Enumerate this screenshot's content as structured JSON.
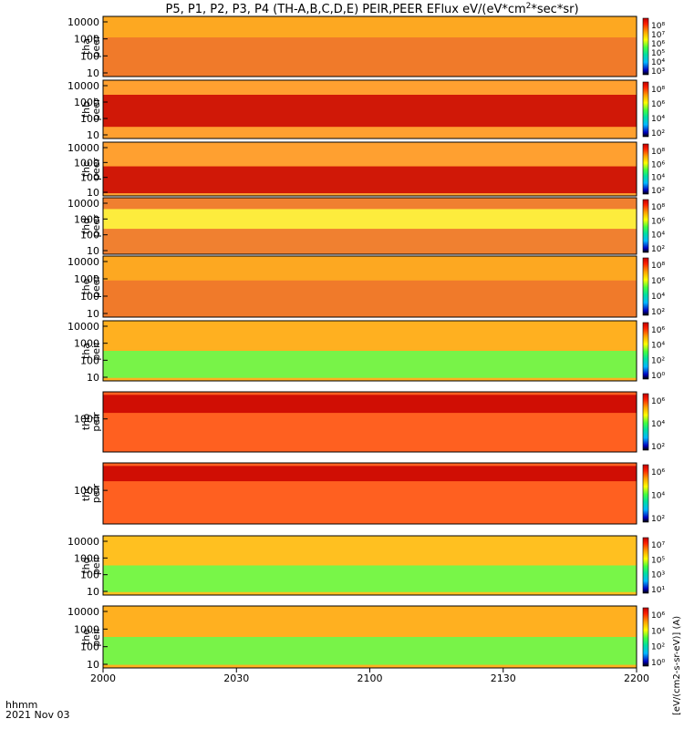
{
  "title": "P5, P1, P2, P3, P4 (TH-A,B,C,D,E) PEIR,PEER EFlux eV/(eV*cm",
  "title_sup": "2",
  "title_end": "*sec*sr)",
  "time_axis": {
    "ticks": [
      "2000",
      "2030",
      "2100",
      "2130",
      "2200"
    ],
    "label_line1": "hhmm",
    "label_line2": "2021 Nov 03"
  },
  "colorbar_label": "[eV/(cm2-s-sr-eV)] (A)",
  "panels": [
    {
      "label1": "tha",
      "label2": "peer",
      "yticks": [
        "10000",
        "1000",
        "100",
        "10"
      ],
      "cticks": [
        "10⁸",
        "10⁷",
        "10⁶",
        "10⁵",
        "10⁴",
        "10³"
      ]
    },
    {
      "label1": "thb",
      "label2": "peer",
      "yticks": [
        "10000",
        "1000",
        "100",
        "10"
      ],
      "cticks": [
        "10⁸",
        "10⁶",
        "10⁴",
        "10²"
      ]
    },
    {
      "label1": "thc",
      "label2": "peer",
      "yticks": [
        "10000",
        "1000",
        "100",
        "10"
      ],
      "cticks": [
        "10⁸",
        "10⁶",
        "10⁴",
        "10²"
      ]
    },
    {
      "label1": "thd",
      "label2": "peer",
      "yticks": [
        "10000",
        "1000",
        "100",
        "10"
      ],
      "cticks": [
        "10⁸",
        "10⁶",
        "10⁴",
        "10²"
      ]
    },
    {
      "label1": "the",
      "label2": "peer",
      "yticks": [
        "10000",
        "1000",
        "100",
        "10"
      ],
      "cticks": [
        "10⁸",
        "10⁶",
        "10⁴",
        "10²"
      ]
    },
    {
      "label1": "tha",
      "label2": "peir",
      "yticks": [
        "10000",
        "1000",
        "100",
        "10"
      ],
      "cticks": [
        "10⁶",
        "10⁴",
        "10²",
        "10⁰"
      ]
    },
    {
      "label1": "thb",
      "label2": "peir",
      "yticks": [
        "1000"
      ],
      "cticks": [
        "10⁶",
        "10⁴",
        "10²"
      ]
    },
    {
      "label1": "thc",
      "label2": "peir",
      "yticks": [
        "1000"
      ],
      "cticks": [
        "10⁶",
        "10⁴",
        "10²"
      ]
    },
    {
      "label1": "thd",
      "label2": "peir",
      "yticks": [
        "10000",
        "1000",
        "100",
        "10"
      ],
      "cticks": [
        "10⁷",
        "10⁵",
        "10³",
        "10¹"
      ]
    },
    {
      "label1": "the",
      "label2": "peir",
      "yticks": [
        "10000",
        "1000",
        "100",
        "10"
      ],
      "cticks": [
        "10⁶",
        "10⁴",
        "10²",
        "10⁰"
      ]
    }
  ],
  "chart_data": {
    "type": "heatmap",
    "x_label": "hhmm",
    "date": "2021 Nov 03",
    "x_range": [
      "2000",
      "2200"
    ],
    "colormap": [
      "#000000",
      "#0000c0",
      "#00b8ff",
      "#00e0a0",
      "#40ff40",
      "#ffff00",
      "#ffa000",
      "#ff2000",
      "#c00000"
    ],
    "series": [
      {
        "name": "tha peer",
        "y_range": [
          7,
          20000
        ],
        "y_scale": "log"
      },
      {
        "name": "thb peer",
        "y_range": [
          7,
          20000
        ],
        "y_scale": "log"
      },
      {
        "name": "thc peer",
        "y_range": [
          7,
          20000
        ],
        "y_scale": "log"
      },
      {
        "name": "thd peer",
        "y_range": [
          7,
          20000
        ],
        "y_scale": "log"
      },
      {
        "name": "the peer",
        "y_range": [
          7,
          20000
        ],
        "y_scale": "log"
      },
      {
        "name": "tha peir",
        "y_range": [
          7,
          25000
        ],
        "y_scale": "log"
      },
      {
        "name": "thb peir",
        "y_range": [
          7,
          25000
        ],
        "y_scale": "log"
      },
      {
        "name": "thc peir",
        "y_range": [
          7,
          25000
        ],
        "y_scale": "log"
      },
      {
        "name": "thd peir",
        "y_range": [
          7,
          25000
        ],
        "y_scale": "log"
      },
      {
        "name": "the peir",
        "y_range": [
          7,
          25000
        ],
        "y_scale": "log"
      }
    ]
  }
}
